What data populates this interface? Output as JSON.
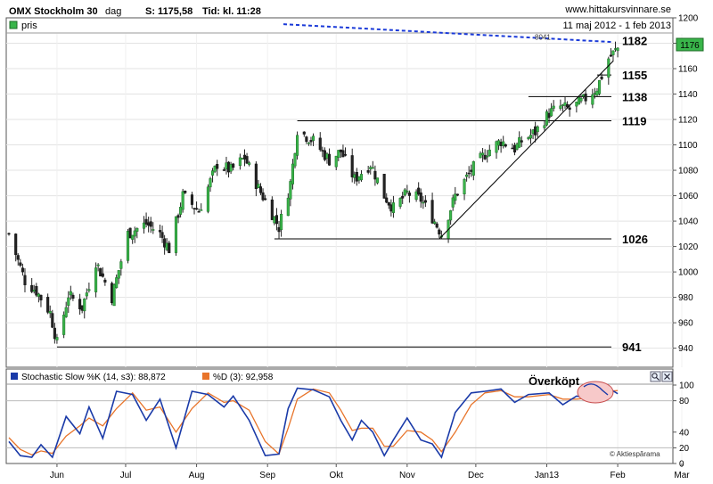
{
  "header": {
    "title": "OMX Stockholm 30",
    "period": "dag",
    "last": "S: 1175,58",
    "time": "Tid: kl. 11:28",
    "site": "www.hittakursvinnare.se",
    "range": "11 maj 2012 - 1 feb 2013",
    "legend_label": "pris",
    "last_badge": "1176",
    "small_label": "8041"
  },
  "indicator": {
    "k_label": "Stochastic Slow %K (14, s3): 88,872",
    "d_label": "%D (3): 92,958",
    "annotation": "Överköpt",
    "credit": "© Aktiespărama",
    "yticks": [
      "100",
      "80",
      "40",
      "20",
      "0"
    ],
    "k_color": "#1a3aa8",
    "d_color": "#e8742a"
  },
  "chart_data": {
    "type": "candlestick",
    "title": "OMX Stockholm 30",
    "ylim": [
      925,
      1200
    ],
    "yticks": [
      940,
      960,
      980,
      1000,
      1020,
      1040,
      1060,
      1080,
      1100,
      1120,
      1140,
      1160,
      1180,
      1200
    ],
    "x_labels": [
      "Jun",
      "Jul",
      "Aug",
      "Sep",
      "Okt",
      "Nov",
      "Dec",
      "Jan13",
      "Feb",
      "Mar"
    ],
    "grid": true,
    "levels": [
      {
        "label": "1182",
        "value": 1182
      },
      {
        "label": "1155",
        "value": 1155
      },
      {
        "label": "1138",
        "value": 1138
      },
      {
        "label": "1119",
        "value": 1119
      },
      {
        "label": "1026",
        "value": 1026
      },
      {
        "label": "941",
        "value": 941
      }
    ],
    "trendline": {
      "from": [
        "2012-11-15",
        1026
      ],
      "to": [
        "2013-01-28",
        1162
      ]
    },
    "price_path": [
      [
        "2012-05-11",
        1030
      ],
      [
        "2012-05-18",
        993
      ],
      [
        "2012-05-23",
        985
      ],
      [
        "2012-05-29",
        968
      ],
      [
        "2012-06-01",
        944
      ],
      [
        "2012-06-06",
        982
      ],
      [
        "2012-06-12",
        972
      ],
      [
        "2012-06-18",
        1008
      ],
      [
        "2012-06-25",
        980
      ],
      [
        "2012-07-02",
        1030
      ],
      [
        "2012-07-10",
        1038
      ],
      [
        "2012-07-16",
        1030
      ],
      [
        "2012-07-20",
        1018
      ],
      [
        "2012-07-26",
        1060
      ],
      [
        "2012-08-02",
        1048
      ],
      [
        "2012-08-10",
        1085
      ],
      [
        "2012-08-16",
        1080
      ],
      [
        "2012-08-22",
        1090
      ],
      [
        "2012-08-28",
        1066
      ],
      [
        "2012-09-03",
        1046
      ],
      [
        "2012-09-06",
        1035
      ],
      [
        "2012-09-11",
        1070
      ],
      [
        "2012-09-14",
        1112
      ],
      [
        "2012-09-21",
        1103
      ],
      [
        "2012-09-28",
        1088
      ],
      [
        "2012-10-03",
        1095
      ],
      [
        "2012-10-09",
        1073
      ],
      [
        "2012-10-16",
        1085
      ],
      [
        "2012-10-22",
        1060
      ],
      [
        "2012-10-26",
        1050
      ],
      [
        "2012-11-01",
        1062
      ],
      [
        "2012-11-07",
        1057
      ],
      [
        "2012-11-12",
        1043
      ],
      [
        "2012-11-16",
        1030
      ],
      [
        "2012-11-22",
        1060
      ],
      [
        "2012-11-29",
        1080
      ],
      [
        "2012-12-06",
        1095
      ],
      [
        "2012-12-12",
        1103
      ],
      [
        "2012-12-18",
        1097
      ],
      [
        "2012-12-21",
        1103
      ],
      [
        "2012-12-27",
        1110
      ],
      [
        "2013-01-02",
        1125
      ],
      [
        "2013-01-07",
        1130
      ],
      [
        "2013-01-11",
        1128
      ],
      [
        "2013-01-17",
        1135
      ],
      [
        "2013-01-23",
        1145
      ],
      [
        "2013-01-28",
        1168
      ],
      [
        "2013-02-01",
        1176
      ]
    ],
    "stoch_k_path": [
      [
        "2012-05-11",
        28
      ],
      [
        "2012-05-16",
        10
      ],
      [
        "2012-05-21",
        8
      ],
      [
        "2012-05-25",
        24
      ],
      [
        "2012-05-30",
        8
      ],
      [
        "2012-06-05",
        60
      ],
      [
        "2012-06-11",
        38
      ],
      [
        "2012-06-15",
        72
      ],
      [
        "2012-06-21",
        32
      ],
      [
        "2012-06-27",
        92
      ],
      [
        "2012-07-04",
        88
      ],
      [
        "2012-07-10",
        55
      ],
      [
        "2012-07-16",
        82
      ],
      [
        "2012-07-23",
        20
      ],
      [
        "2012-07-30",
        92
      ],
      [
        "2012-08-06",
        88
      ],
      [
        "2012-08-13",
        72
      ],
      [
        "2012-08-17",
        86
      ],
      [
        "2012-08-24",
        55
      ],
      [
        "2012-08-31",
        10
      ],
      [
        "2012-09-06",
        12
      ],
      [
        "2012-09-10",
        70
      ],
      [
        "2012-09-14",
        96
      ],
      [
        "2012-09-21",
        94
      ],
      [
        "2012-09-28",
        85
      ],
      [
        "2012-10-03",
        55
      ],
      [
        "2012-10-08",
        30
      ],
      [
        "2012-10-12",
        55
      ],
      [
        "2012-10-17",
        40
      ],
      [
        "2012-10-22",
        10
      ],
      [
        "2012-10-26",
        30
      ],
      [
        "2012-11-01",
        58
      ],
      [
        "2012-11-07",
        30
      ],
      [
        "2012-11-12",
        25
      ],
      [
        "2012-11-16",
        8
      ],
      [
        "2012-11-22",
        65
      ],
      [
        "2012-11-29",
        90
      ],
      [
        "2012-12-05",
        92
      ],
      [
        "2012-12-12",
        95
      ],
      [
        "2012-12-18",
        78
      ],
      [
        "2012-12-24",
        88
      ],
      [
        "2013-01-02",
        90
      ],
      [
        "2013-01-08",
        75
      ],
      [
        "2013-01-14",
        86
      ],
      [
        "2013-01-21",
        82
      ],
      [
        "2013-01-28",
        96
      ],
      [
        "2013-02-01",
        89
      ]
    ],
    "stoch_d_path": [
      [
        "2012-05-11",
        33
      ],
      [
        "2012-05-16",
        18
      ],
      [
        "2012-05-21",
        11
      ],
      [
        "2012-05-25",
        16
      ],
      [
        "2012-05-30",
        13
      ],
      [
        "2012-06-05",
        35
      ],
      [
        "2012-06-11",
        48
      ],
      [
        "2012-06-15",
        58
      ],
      [
        "2012-06-21",
        48
      ],
      [
        "2012-06-27",
        70
      ],
      [
        "2012-07-04",
        90
      ],
      [
        "2012-07-10",
        68
      ],
      [
        "2012-07-16",
        72
      ],
      [
        "2012-07-23",
        40
      ],
      [
        "2012-07-30",
        70
      ],
      [
        "2012-08-06",
        90
      ],
      [
        "2012-08-13",
        78
      ],
      [
        "2012-08-17",
        80
      ],
      [
        "2012-08-24",
        68
      ],
      [
        "2012-08-31",
        28
      ],
      [
        "2012-09-06",
        12
      ],
      [
        "2012-09-10",
        45
      ],
      [
        "2012-09-14",
        82
      ],
      [
        "2012-09-21",
        95
      ],
      [
        "2012-09-28",
        90
      ],
      [
        "2012-10-03",
        68
      ],
      [
        "2012-10-08",
        42
      ],
      [
        "2012-10-12",
        45
      ],
      [
        "2012-10-17",
        45
      ],
      [
        "2012-10-22",
        22
      ],
      [
        "2012-10-26",
        22
      ],
      [
        "2012-11-01",
        42
      ],
      [
        "2012-11-07",
        40
      ],
      [
        "2012-11-12",
        30
      ],
      [
        "2012-11-16",
        15
      ],
      [
        "2012-11-22",
        40
      ],
      [
        "2012-11-29",
        75
      ],
      [
        "2012-12-05",
        90
      ],
      [
        "2012-12-12",
        93
      ],
      [
        "2012-12-18",
        85
      ],
      [
        "2012-12-24",
        85
      ],
      [
        "2013-01-02",
        88
      ],
      [
        "2013-01-08",
        82
      ],
      [
        "2013-01-14",
        82
      ],
      [
        "2013-01-21",
        84
      ],
      [
        "2013-01-28",
        92
      ],
      [
        "2013-02-01",
        93
      ]
    ]
  }
}
